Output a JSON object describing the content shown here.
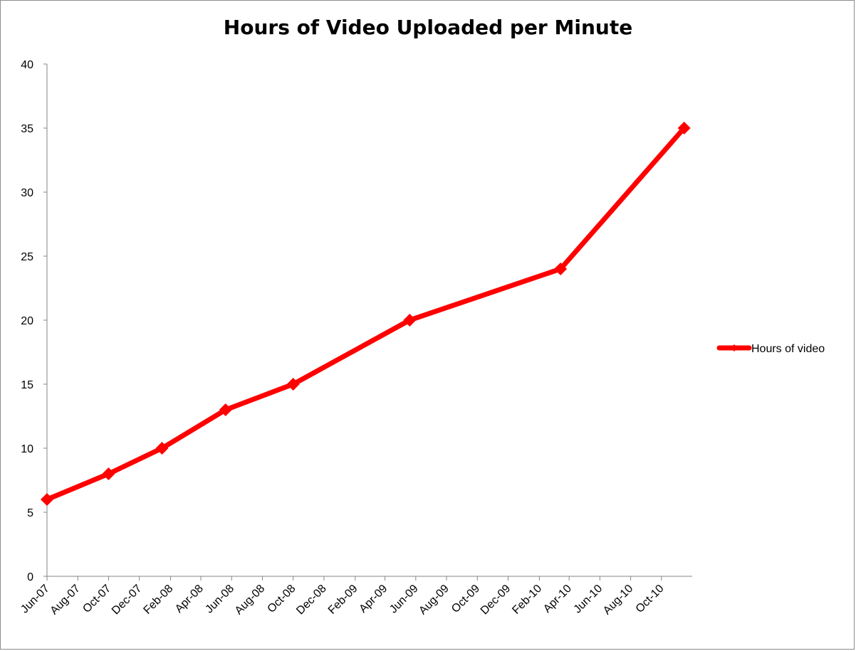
{
  "chart_data": {
    "type": "line",
    "title": "Hours of Video Uploaded per Minute",
    "xlabel": "",
    "ylabel": "",
    "ylim": [
      0,
      40
    ],
    "yticks": [
      0,
      5,
      10,
      15,
      20,
      25,
      30,
      35,
      40
    ],
    "xticks": [
      "Jun-07",
      "Aug-07",
      "Oct-07",
      "Dec-07",
      "Feb-08",
      "Apr-08",
      "Jun-08",
      "Aug-08",
      "Oct-08",
      "Dec-08",
      "Feb-09",
      "Apr-09",
      "Jun-09",
      "Aug-09",
      "Oct-09",
      "Dec-09",
      "Feb-10",
      "Apr-10",
      "Jun-10",
      "Aug-10",
      "Oct-10"
    ],
    "grid": false,
    "legend_position": "right",
    "series": [
      {
        "name": "Hours of video",
        "color": "#ff0000",
        "marker": "diamond",
        "points": [
          {
            "x": "2007-06-01",
            "y": 6
          },
          {
            "x": "2007-10-01",
            "y": 8
          },
          {
            "x": "2008-01-15",
            "y": 10
          },
          {
            "x": "2008-05-20",
            "y": 13
          },
          {
            "x": "2008-10-01",
            "y": 15
          },
          {
            "x": "2009-05-20",
            "y": 20
          },
          {
            "x": "2010-03-15",
            "y": 24
          },
          {
            "x": "2010-11-15",
            "y": 35
          }
        ]
      }
    ]
  }
}
